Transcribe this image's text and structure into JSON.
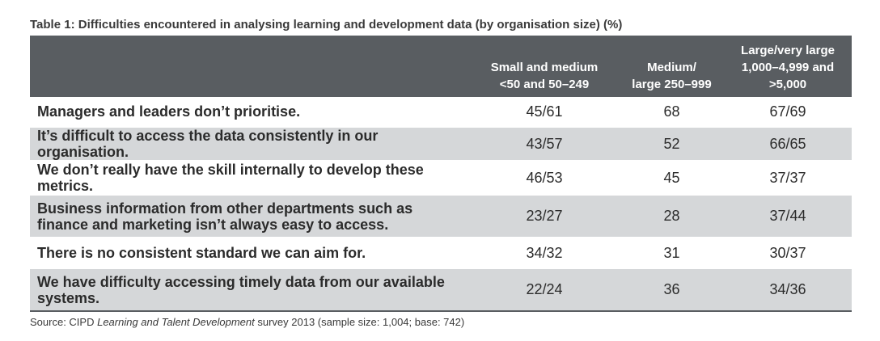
{
  "title": "Table 1: Difficulties encountered in analysing learning and development data (by organisation size) (%)",
  "columns": [
    {
      "line1": "Small and medium",
      "line2": "<50 and 50–249",
      "line3": ""
    },
    {
      "line1": "Medium/",
      "line2": "large 250–999",
      "line3": ""
    },
    {
      "line1": "Large/very large",
      "line2": "1,000–4,999 and",
      "line3": ">5,000"
    }
  ],
  "rows": [
    {
      "label": "Managers and leaders don’t prioritise.",
      "small_medium": "45/61",
      "medium_large": "68",
      "large_very_large": "67/69"
    },
    {
      "label": "It’s difficult to access the data consistently in our organisation.",
      "small_medium": "43/57",
      "medium_large": "52",
      "large_very_large": "66/65"
    },
    {
      "label": "We don’t really have the skill internally to develop these metrics.",
      "small_medium": "46/53",
      "medium_large": "45",
      "large_very_large": "37/37"
    },
    {
      "label": "Business information from other departments such as finance and marketing isn’t always easy to access.",
      "small_medium": "23/27",
      "medium_large": "28",
      "large_very_large": "37/44"
    },
    {
      "label": "There is no consistent standard we can aim for.",
      "small_medium": "34/32",
      "medium_large": "31",
      "large_very_large": "30/37"
    },
    {
      "label": "We have difficulty accessing timely data from our available systems.",
      "small_medium": "22/24",
      "medium_large": "36",
      "large_very_large": "34/36"
    }
  ],
  "source": {
    "prefix": "Source: CIPD ",
    "italic": "Learning and Talent Development",
    "suffix": " survey 2013 (sample size: 1,004; base: 742)"
  },
  "colors": {
    "header_bg": "#595d61",
    "shade_row": "#d5d7d9"
  }
}
